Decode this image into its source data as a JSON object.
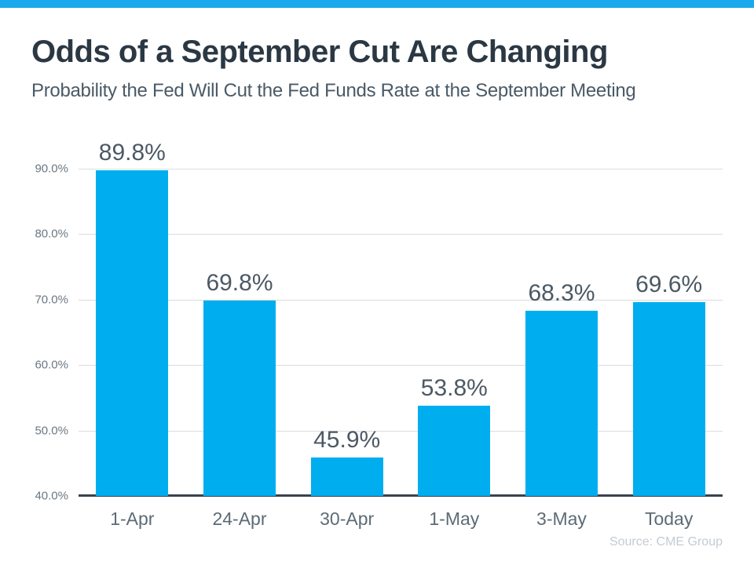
{
  "header": {
    "title": "Odds of a September Cut Are Changing",
    "subtitle": "Probability the Fed Will Cut the Fed Funds Rate at the September Meeting"
  },
  "footer": {
    "source": "Source: CME Group"
  },
  "colors": {
    "accent_bar": "#19A9EC",
    "bar": "#00AEEF",
    "title": "#2B3844",
    "subtitle": "#4A5A66",
    "data_label": "#4C5965",
    "axis_label": "#6A7884",
    "x_label": "#5C6B76",
    "gridline": "#D9DCDE",
    "axis_line": "#39434E",
    "source": "#C3CCD2"
  },
  "chart_data": {
    "type": "bar",
    "title": "Odds of a September Cut Are Changing",
    "subtitle": "Probability the Fed Will Cut the Fed Funds Rate at the September Meeting",
    "categories": [
      "1-Apr",
      "24-Apr",
      "30-Apr",
      "1-May",
      "3-May",
      "Today"
    ],
    "values": [
      89.8,
      69.8,
      45.9,
      53.8,
      68.3,
      69.6
    ],
    "value_labels": [
      "89.8%",
      "69.8%",
      "45.9%",
      "53.8%",
      "68.3%",
      "69.6%"
    ],
    "xlabel": "",
    "ylabel": "",
    "ylim": [
      40,
      90
    ],
    "yticks": [
      {
        "value": 90,
        "label": "90.0%"
      },
      {
        "value": 80,
        "label": "80.0%"
      },
      {
        "value": 70,
        "label": "70.0%"
      },
      {
        "value": 60,
        "label": "60.0%"
      },
      {
        "value": 50,
        "label": "50.0%"
      },
      {
        "value": 40,
        "label": "40.0%"
      }
    ],
    "grid": true,
    "legend": false,
    "annotations": [],
    "source": "Source: CME Group"
  }
}
